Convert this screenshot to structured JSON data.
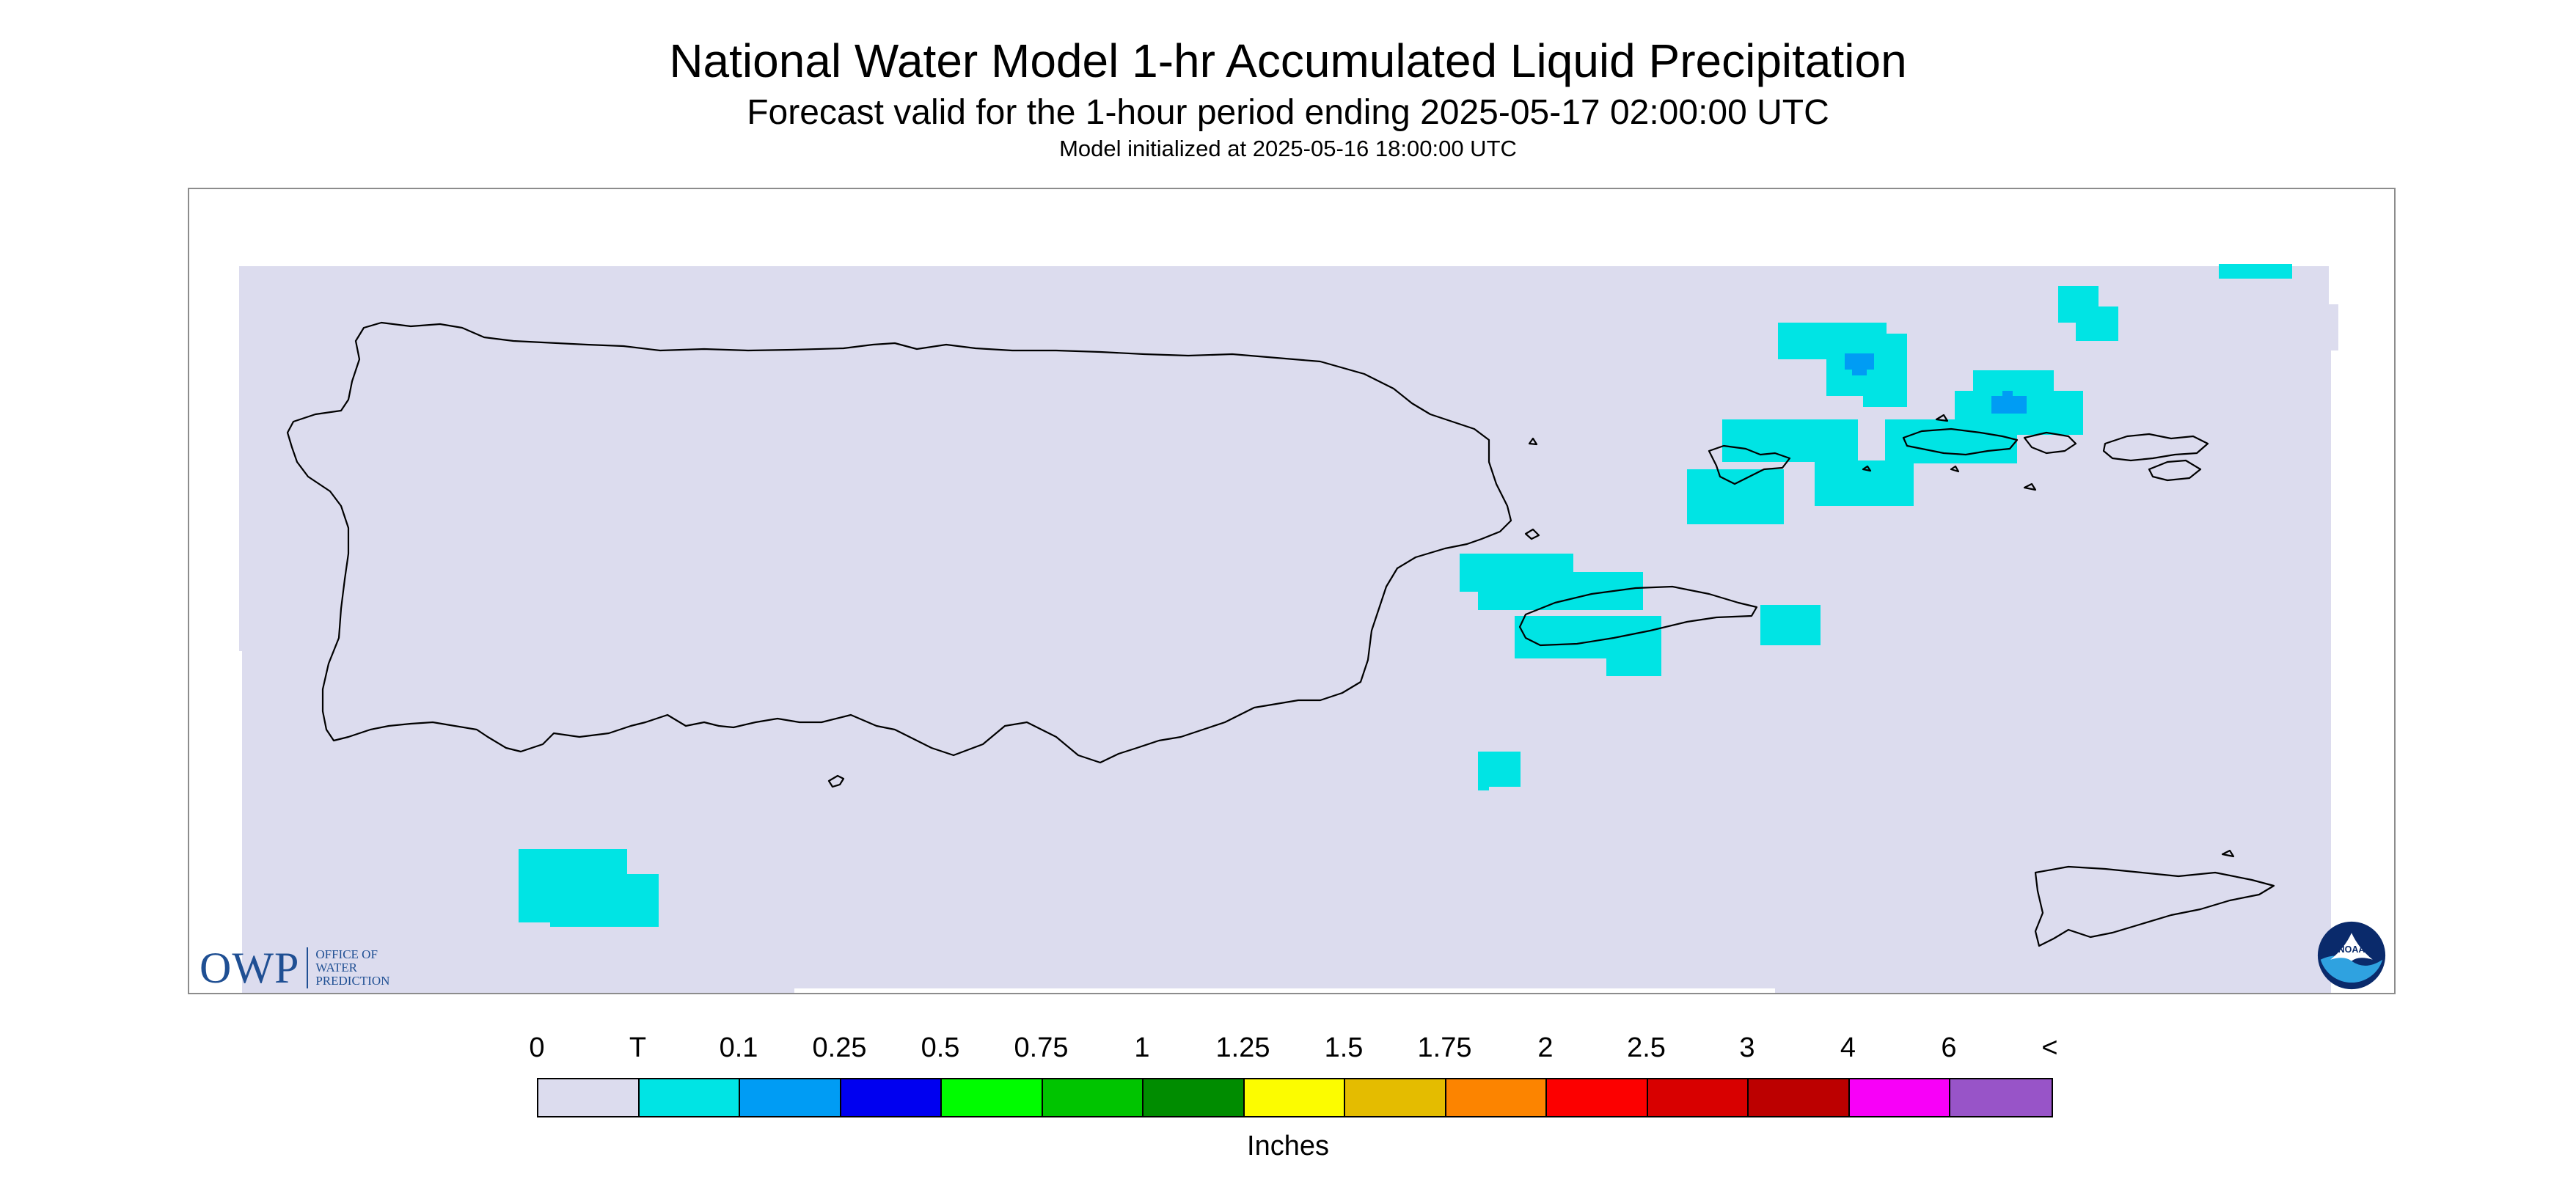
{
  "header": {
    "title": "National Water Model 1-hr Accumulated Liquid Precipitation",
    "subtitle": "Forecast valid for the 1-hour period ending 2025-05-17 02:00:00 UTC",
    "init_line": "Model initialized at 2025-05-16 18:00:00 UTC"
  },
  "legend": {
    "labels": [
      "0",
      "T",
      "0.1",
      "0.25",
      "0.5",
      "0.75",
      "1",
      "1.25",
      "1.5",
      "1.75",
      "2",
      "2.5",
      "3",
      "4",
      "6",
      "<"
    ],
    "colors": [
      "#dcdcee",
      "#00e4e4",
      "#009cf4",
      "#0000f0",
      "#00fc00",
      "#00c400",
      "#008c00",
      "#fcfc00",
      "#e4bc00",
      "#fc8400",
      "#fc0000",
      "#d80000",
      "#bc0000",
      "#f800f8",
      "#9854c8"
    ],
    "units": "Inches"
  },
  "map": {
    "background_color": "#dcdcee",
    "region": "Puerto Rico and U.S. Virgin Islands",
    "precip_trace_color": "#00e4e4",
    "precip_light_color": "#009cf4"
  },
  "logos": {
    "owp_letters": "OWP",
    "owp_text": [
      "OFFICE OF",
      "WATER",
      "PREDICTION"
    ],
    "noaa_text": "NOAA"
  },
  "icons": {
    "owp": "owp-logo-icon",
    "noaa": "noaa-logo-icon"
  }
}
